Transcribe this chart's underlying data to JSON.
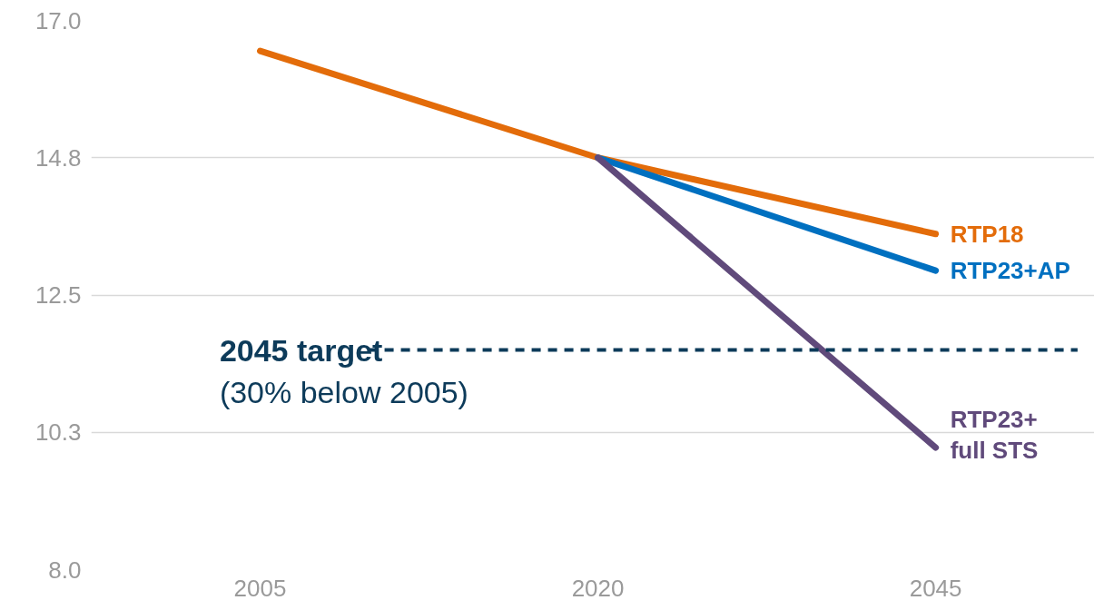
{
  "chart_data": {
    "type": "line",
    "categories": [
      "2005",
      "2020",
      "2045"
    ],
    "series": [
      {
        "name": "RTP18",
        "color": "#e36c0a",
        "values": [
          16.5,
          14.75,
          13.5
        ]
      },
      {
        "name": "RTP23+AP",
        "color": "#0070c0",
        "values": [
          null,
          14.75,
          12.9
        ]
      },
      {
        "name": "RTP23+\nfull STS",
        "color": "#604a7b",
        "values": [
          null,
          14.75,
          10.0
        ]
      }
    ],
    "ylim": [
      8,
      17
    ],
    "yticks": [
      {
        "value": 8,
        "label": "8.0"
      },
      {
        "value": 10.25,
        "label": "10.3"
      },
      12.5,
      {
        "value": 14.75,
        "label": "14.8"
      },
      {
        "value": 17,
        "label": "17.0"
      }
    ],
    "grid": "y",
    "legend": false,
    "marker": "none",
    "line_style": "solid",
    "ref_lines": [
      {
        "axis": "y",
        "value": 11.6,
        "label": "2045 target",
        "color": "#0d3b5a",
        "line_style": "dashed"
      }
    ],
    "annotations": [
      "(30% below 2005)"
    ]
  }
}
